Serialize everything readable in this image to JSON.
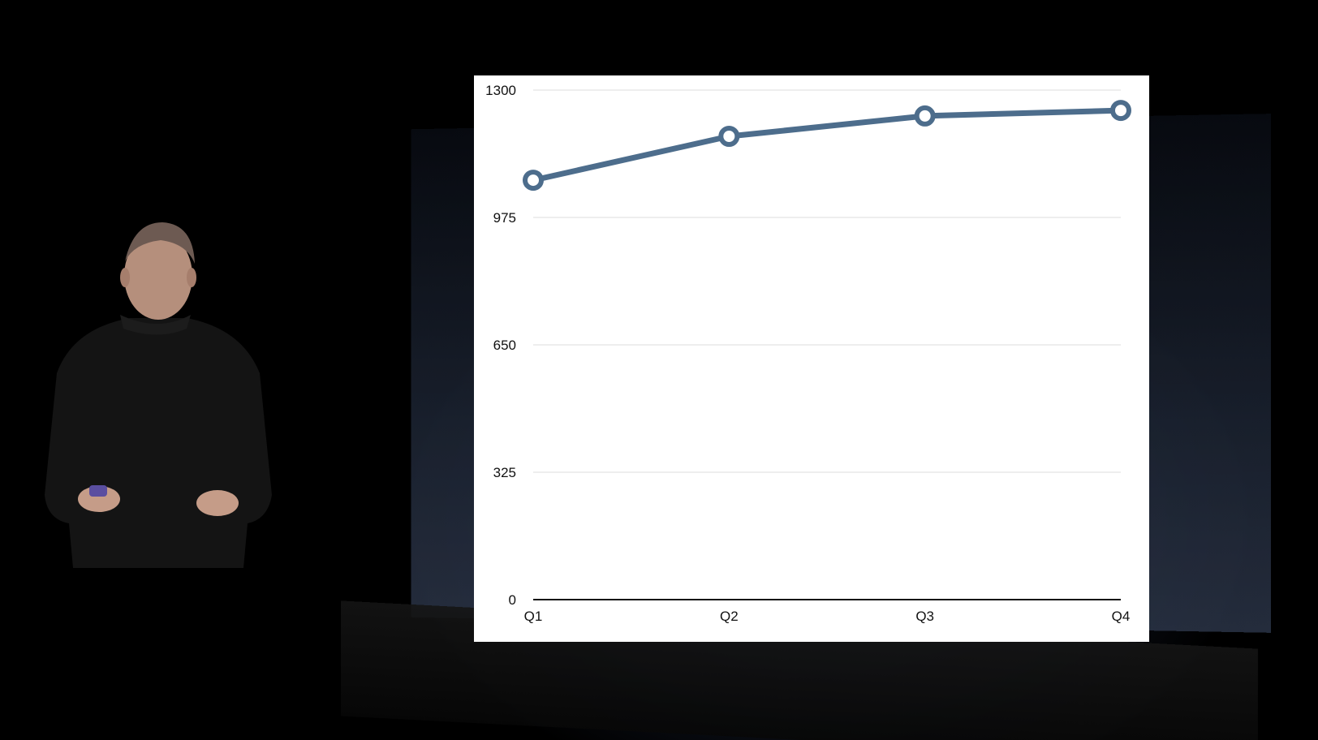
{
  "chart_data": {
    "type": "line",
    "title": "",
    "xlabel": "",
    "ylabel": "",
    "categories": [
      "Q1",
      "Q2",
      "Q3",
      "Q4"
    ],
    "series": [
      {
        "values": [
          1070,
          1182,
          1234,
          1248
        ]
      }
    ],
    "yticks": [
      "0",
      "325",
      "650",
      "975",
      "1300"
    ],
    "ylim": [
      0,
      1300
    ],
    "grid": true,
    "legend": "none",
    "line_color": "#4d6d8c",
    "grid_color": "#e3e3e3"
  }
}
